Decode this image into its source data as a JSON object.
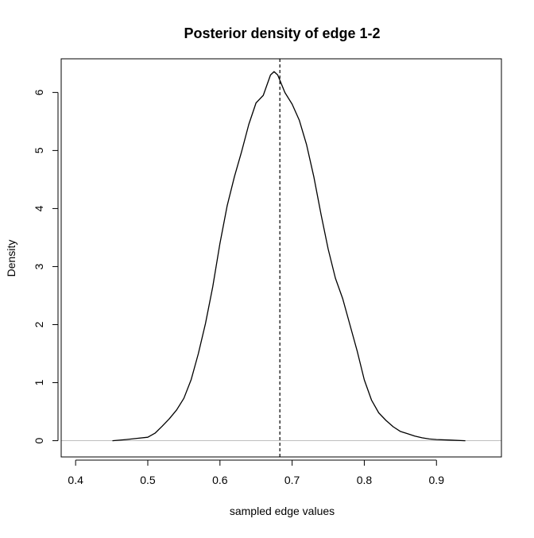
{
  "chart_data": {
    "type": "line",
    "title": "Posterior density of edge 1-2",
    "xlabel": "sampled edge values",
    "ylabel": "Density",
    "xlim": [
      0.38,
      0.99
    ],
    "ylim": [
      -0.28,
      6.58
    ],
    "x_ticks": [
      0.4,
      0.5,
      0.6,
      0.7,
      0.8,
      0.9
    ],
    "x_tick_labels": [
      "0.4",
      "0.5",
      "0.6",
      "0.7",
      "0.8",
      "0.9"
    ],
    "y_ticks": [
      0,
      1,
      2,
      3,
      4,
      5,
      6
    ],
    "y_tick_labels": [
      "0",
      "1",
      "2",
      "3",
      "4",
      "5",
      "6"
    ],
    "reference_line": {
      "x": 0.683,
      "style": "dashed",
      "orientation": "vertical"
    },
    "baseline": {
      "y": 0,
      "color": "#bebebe"
    },
    "grid": false,
    "series": [
      {
        "color": "#000000",
        "x": [
          0.451,
          0.47,
          0.485,
          0.5,
          0.51,
          0.52,
          0.53,
          0.54,
          0.55,
          0.56,
          0.57,
          0.58,
          0.59,
          0.6,
          0.61,
          0.62,
          0.63,
          0.64,
          0.65,
          0.66,
          0.67,
          0.675,
          0.68,
          0.685,
          0.69,
          0.7,
          0.71,
          0.72,
          0.73,
          0.74,
          0.75,
          0.76,
          0.77,
          0.78,
          0.79,
          0.8,
          0.81,
          0.82,
          0.83,
          0.84,
          0.85,
          0.86,
          0.87,
          0.88,
          0.89,
          0.9,
          0.92,
          0.94
        ],
        "y": [
          0.0,
          0.02,
          0.04,
          0.06,
          0.13,
          0.25,
          0.38,
          0.53,
          0.73,
          1.05,
          1.5,
          2.02,
          2.65,
          3.4,
          4.05,
          4.55,
          4.98,
          5.45,
          5.82,
          5.95,
          6.3,
          6.36,
          6.3,
          6.15,
          6.0,
          5.8,
          5.52,
          5.1,
          4.55,
          3.9,
          3.3,
          2.8,
          2.45,
          2.0,
          1.55,
          1.05,
          0.7,
          0.48,
          0.35,
          0.24,
          0.16,
          0.12,
          0.08,
          0.05,
          0.03,
          0.02,
          0.01,
          0.0
        ]
      }
    ]
  }
}
